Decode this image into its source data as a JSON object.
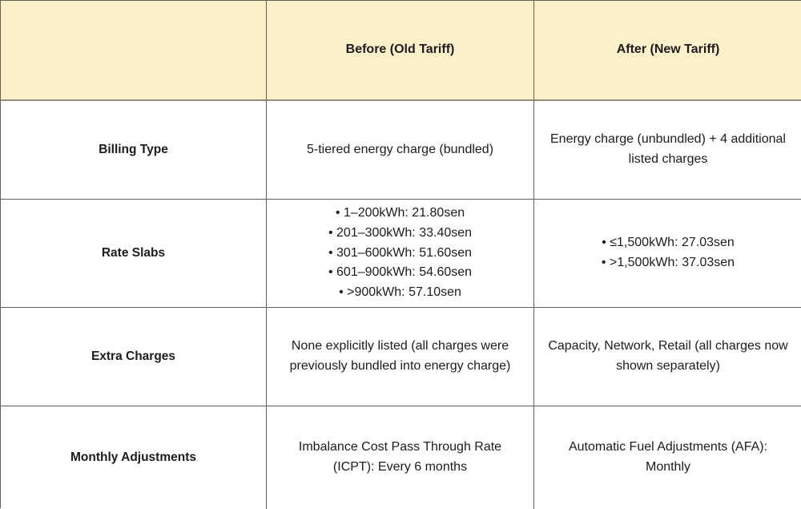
{
  "colors": {
    "header_background": "#fcf0cb",
    "grid_border": "#62625a",
    "text": "#1c1c1c",
    "cell_background": "#ffffff"
  },
  "table": {
    "bullet": "•",
    "header": {
      "blank": "",
      "before": "Before (Old Tariff)",
      "after": "After (New Tariff)"
    },
    "rows": [
      {
        "label": "Billing Type",
        "before": "5-tiered energy charge (bundled)",
        "after": "Energy charge (unbundled) + 4 additional listed charges"
      },
      {
        "label": "Rate Slabs",
        "before_items": [
          "1–200kWh: 21.80sen",
          "201–300kWh: 33.40sen",
          "301–600kWh: 51.60sen",
          "601–900kWh: 54.60sen",
          ">900kWh: 57.10sen"
        ],
        "after_items": [
          "≤1,500kWh: 27.03sen",
          ">1,500kWh: 37.03sen"
        ]
      },
      {
        "label": "Extra Charges",
        "before": "None explicitly listed (all charges were previously bundled into energy charge)",
        "after": "Capacity, Network, Retail (all charges now shown separately)"
      },
      {
        "label": "Monthly Adjustments",
        "before": "Imbalance Cost Pass Through Rate (ICPT): Every 6 months",
        "after": "Automatic Fuel Adjustments (AFA): Monthly"
      }
    ]
  }
}
